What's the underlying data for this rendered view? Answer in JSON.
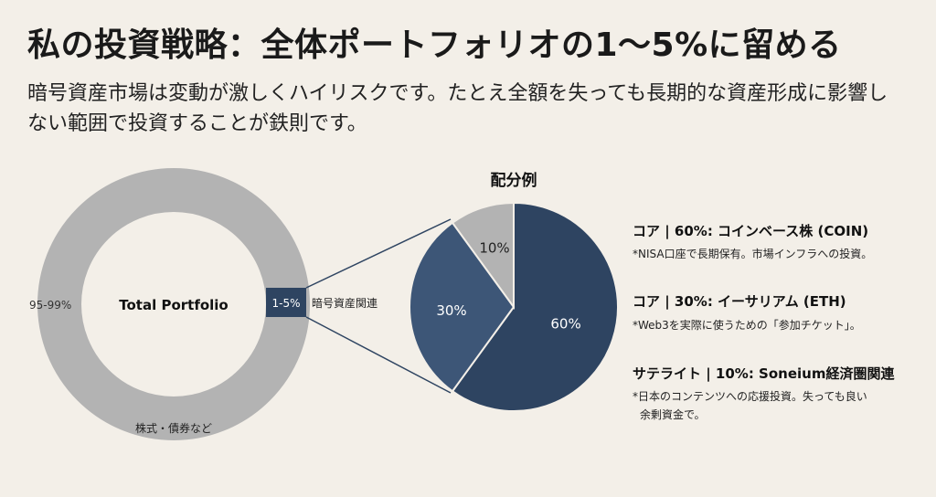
{
  "header": {
    "title": "私の投資戦略：全体ポートフォリオの1〜5%に留める",
    "subtitle": "暗号資産市場は変動が激しくハイリスクです。たとえ全額を失っても長期的な資産形成に影響しない範囲で投資することが鉄則です。"
  },
  "chart_data": [
    {
      "type": "donut",
      "title": "Total Portfolio",
      "segments": [
        {
          "label": "株式・債券など",
          "range_label": "95-99%",
          "value": 97,
          "color": "#b3b3b3"
        },
        {
          "label": "暗号資産関連",
          "range_label": "1-5%",
          "value": 3,
          "color": "#2e4461"
        }
      ]
    },
    {
      "type": "pie",
      "title": "配分例",
      "slices": [
        {
          "label": "60%",
          "value": 60,
          "color": "#2e4461"
        },
        {
          "label": "30%",
          "value": 30,
          "color": "#3d5677"
        },
        {
          "label": "10%",
          "value": 10,
          "color": "#b3b3b3"
        }
      ]
    }
  ],
  "legend": [
    {
      "title": "コア | 60%: コインベース株 (COIN)",
      "notes": [
        "*NISA口座で長期保有。市場インフラへの投資。"
      ]
    },
    {
      "title": "コア | 30%: イーサリアム (ETH)",
      "notes": [
        "*Web3を実際に使うための「参加チケット」。"
      ]
    },
    {
      "title": "サテライト | 10%: Soneium経済圏関連",
      "notes": [
        "*日本のコンテンツへの応援投資。失っても良い",
        "余剰資金で。"
      ]
    }
  ]
}
